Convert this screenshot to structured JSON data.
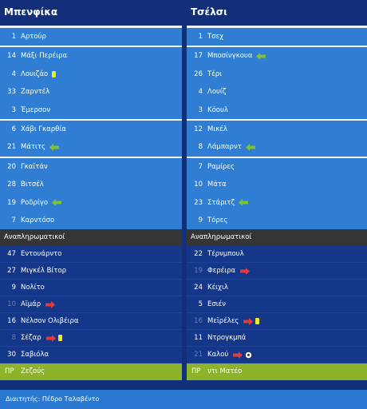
{
  "home": {
    "team_name": "Μπενφίκα",
    "starters": [
      {
        "num": "1",
        "name": "Αρτούρ",
        "icons": []
      },
      {
        "num": "14",
        "name": "Μάξι Περέιρα",
        "icons": []
      },
      {
        "num": "4",
        "name": "Λουιζάο",
        "icons": [
          "yellow-card"
        ]
      },
      {
        "num": "33",
        "name": "Ζαρντέλ",
        "icons": []
      },
      {
        "num": "3",
        "name": "Έμερσον",
        "icons": []
      },
      {
        "num": "6",
        "name": "Χάβι Γκαρθία",
        "icons": []
      },
      {
        "num": "21",
        "name": "Μάτιτς",
        "icons": [
          "sub-in"
        ]
      },
      {
        "num": "20",
        "name": "Γκαϊτάν",
        "icons": []
      },
      {
        "num": "28",
        "name": "Βιτσέλ",
        "icons": []
      },
      {
        "num": "19",
        "name": "Ροδρίγο",
        "icons": [
          "sub-in"
        ]
      },
      {
        "num": "7",
        "name": "Καρντόσο",
        "icons": []
      }
    ],
    "subs_label": "Αναπληρωματικοί",
    "bench": [
      {
        "num": "47",
        "name": "Εντουάρντο",
        "icons": [],
        "dim": false
      },
      {
        "num": "27",
        "name": "Μιγκέλ Βίτορ",
        "icons": [],
        "dim": false
      },
      {
        "num": "9",
        "name": "Νολίτο",
        "icons": [],
        "dim": false
      },
      {
        "num": "10",
        "name": "Αϊμάρ",
        "icons": [
          "sub-out"
        ],
        "dim": true
      },
      {
        "num": "16",
        "name": "Νέλσον Ολιβέιρα",
        "icons": [],
        "dim": false
      },
      {
        "num": "8",
        "name": "Σέζαρ",
        "icons": [
          "sub-out",
          "yellow-card"
        ],
        "dim": true
      },
      {
        "num": "30",
        "name": "Σαβιόλα",
        "icons": [],
        "dim": false
      }
    ],
    "coach_label": "ΠΡ",
    "coach_name": "Ζεζούς"
  },
  "away": {
    "team_name": "Τσέλσι",
    "starters": [
      {
        "num": "1",
        "name": "Τσεχ",
        "icons": []
      },
      {
        "num": "17",
        "name": "Μποσίνγκουα",
        "icons": [
          "sub-in"
        ]
      },
      {
        "num": "26",
        "name": "Τέρι",
        "icons": []
      },
      {
        "num": "4",
        "name": "Λουίζ",
        "icons": []
      },
      {
        "num": "3",
        "name": "Κόουλ",
        "icons": []
      },
      {
        "num": "12",
        "name": "Μικέλ",
        "icons": []
      },
      {
        "num": "8",
        "name": "Λάμπαρντ",
        "icons": [
          "sub-in"
        ]
      },
      {
        "num": "7",
        "name": "Ραμίρες",
        "icons": []
      },
      {
        "num": "10",
        "name": "Μάτα",
        "icons": []
      },
      {
        "num": "23",
        "name": "Στάριτζ",
        "icons": [
          "sub-in"
        ]
      },
      {
        "num": "9",
        "name": "Τόρες",
        "icons": []
      }
    ],
    "subs_label": "Αναπληρωματικοί",
    "bench": [
      {
        "num": "22",
        "name": "Τέρνμπουλ",
        "icons": [],
        "dim": false
      },
      {
        "num": "19",
        "name": "Φερέιρα",
        "icons": [
          "sub-out"
        ],
        "dim": true
      },
      {
        "num": "24",
        "name": "Κέιχιλ",
        "icons": [],
        "dim": false
      },
      {
        "num": "5",
        "name": "Εσιέν",
        "icons": [],
        "dim": false
      },
      {
        "num": "16",
        "name": "Μεϊρέλες",
        "icons": [
          "sub-out",
          "yellow-card"
        ],
        "dim": true
      },
      {
        "num": "11",
        "name": "Ντρογκμπά",
        "icons": [],
        "dim": false
      },
      {
        "num": "21",
        "name": "Καλού",
        "icons": [
          "sub-out",
          "goal"
        ],
        "dim": true
      }
    ],
    "coach_label": "ΠΡ",
    "coach_name": "ντι Ματέο"
  },
  "referee": "Διαιτητής: Πέδρο Ταλαβέντο",
  "colors": {
    "background": "#12307a",
    "lineup_row": "#2f7ed3",
    "bench_row": "#14378a",
    "subs_header": "#353535",
    "coach_row": "#8db329",
    "yellow_card": "#f1e629",
    "sub_in": "#7cc233",
    "sub_out": "#e33b3b"
  }
}
